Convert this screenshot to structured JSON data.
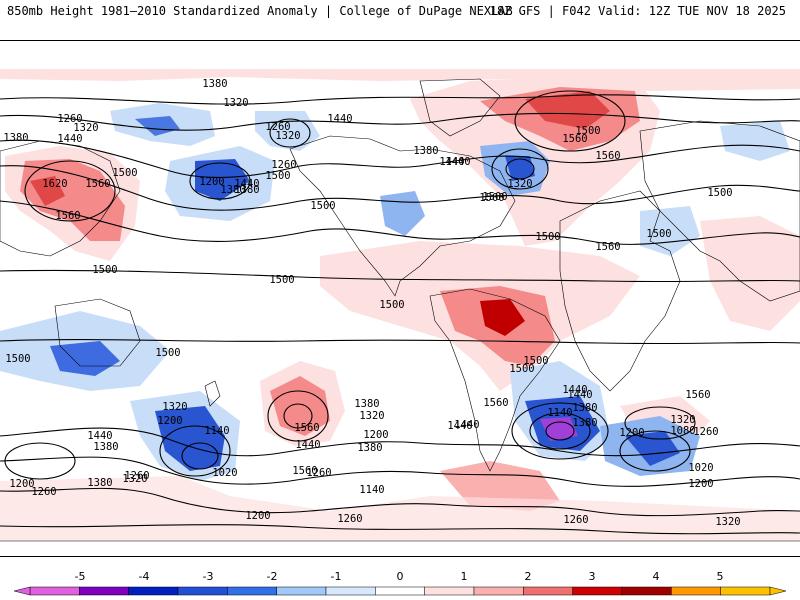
{
  "header": {
    "title": "850mb Height 1981–2010 Standardized Anomaly | College of DuPage NEXLAB",
    "run_info": "18Z GFS | F042 Valid: 12Z TUE NOV 18 2025"
  },
  "colorbar": {
    "ticks": [
      "-5",
      "-4",
      "-3",
      "-2",
      "-1",
      "0",
      "1",
      "2",
      "3",
      "4",
      "5"
    ],
    "colors": [
      "#e060e0",
      "#8000c0",
      "#0020c0",
      "#2050d8",
      "#3070e8",
      "#a0c8f8",
      "#d8e8fc",
      "#ffffff",
      "#fde0e0",
      "#fbb0b0",
      "#f07070",
      "#d00000",
      "#a00000",
      "#ff9900",
      "#ffc000"
    ]
  },
  "contour_labels": [
    {
      "text": "1380"
    },
    {
      "text": "1320"
    },
    {
      "text": "1260"
    },
    {
      "text": "1320"
    },
    {
      "text": "1380"
    },
    {
      "text": "1440"
    },
    {
      "text": "1260"
    },
    {
      "text": "1320"
    },
    {
      "text": "1440"
    },
    {
      "text": "1500"
    },
    {
      "text": "1380"
    },
    {
      "text": "1440"
    },
    {
      "text": "1500"
    },
    {
      "text": "1380"
    },
    {
      "text": "1440"
    },
    {
      "text": "1620"
    },
    {
      "text": "1560"
    },
    {
      "text": "1500"
    },
    {
      "text": "1560"
    },
    {
      "text": "1200"
    },
    {
      "text": "1260"
    },
    {
      "text": "1380"
    },
    {
      "text": "1440"
    },
    {
      "text": "1500"
    },
    {
      "text": "1560"
    },
    {
      "text": "1320"
    },
    {
      "text": "1500"
    },
    {
      "text": "1560"
    },
    {
      "text": "1500"
    },
    {
      "text": "1500"
    },
    {
      "text": "1500"
    },
    {
      "text": "1500"
    },
    {
      "text": "1500"
    },
    {
      "text": "1500"
    },
    {
      "text": "1500"
    },
    {
      "text": "1440"
    },
    {
      "text": "1380"
    },
    {
      "text": "1320"
    },
    {
      "text": "1440"
    },
    {
      "text": "1380"
    },
    {
      "text": "1200"
    },
    {
      "text": "1140"
    },
    {
      "text": "1020"
    },
    {
      "text": "1260"
    },
    {
      "text": "1200"
    },
    {
      "text": "1260"
    },
    {
      "text": "1380"
    },
    {
      "text": "1320"
    },
    {
      "text": "1560"
    },
    {
      "text": "1440"
    },
    {
      "text": "1380"
    },
    {
      "text": "1320"
    },
    {
      "text": "1200"
    },
    {
      "text": "1260"
    },
    {
      "text": "1140"
    },
    {
      "text": "1200"
    },
    {
      "text": "1260"
    },
    {
      "text": "1560"
    },
    {
      "text": "1440"
    },
    {
      "text": "1380"
    },
    {
      "text": "1140"
    },
    {
      "text": "1200"
    },
    {
      "text": "1080"
    },
    {
      "text": "1320"
    },
    {
      "text": "1260"
    },
    {
      "text": "1020"
    },
    {
      "text": "1200"
    },
    {
      "text": "1260"
    },
    {
      "text": "1320"
    },
    {
      "text": "1560"
    },
    {
      "text": "1500"
    },
    {
      "text": "1440"
    },
    {
      "text": "1500"
    },
    {
      "text": "1560"
    },
    {
      "text": "1500"
    },
    {
      "text": "1500"
    },
    {
      "text": "1380"
    },
    {
      "text": "1440"
    },
    {
      "text": "1560"
    }
  ]
}
